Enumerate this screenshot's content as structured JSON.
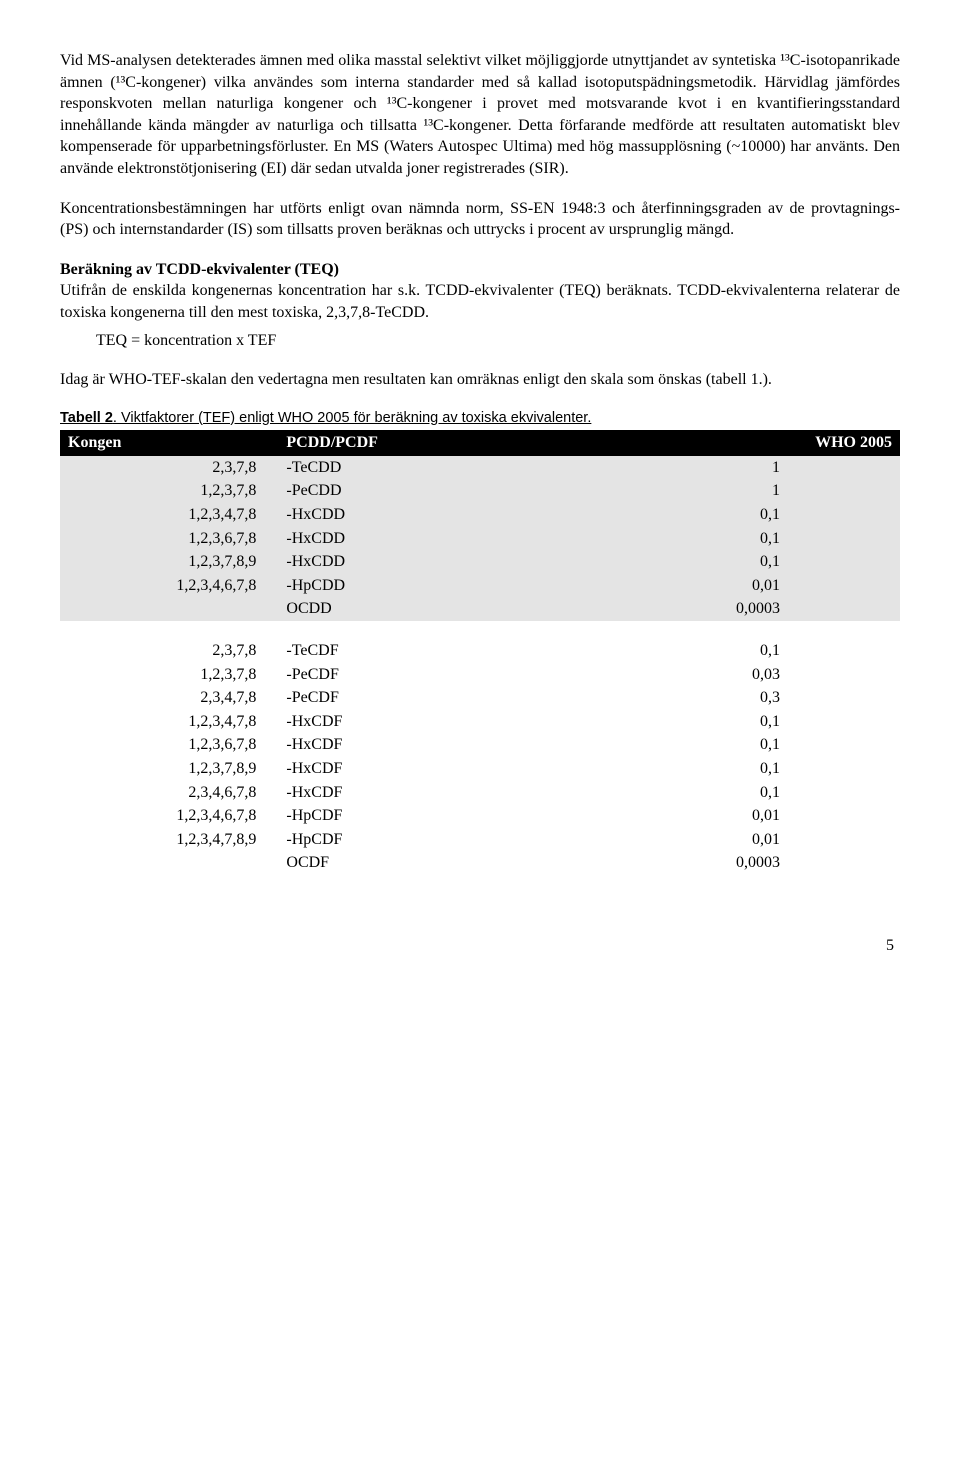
{
  "para1": "Vid MS-analysen detekterades ämnen med olika masstal selektivt vilket möjliggjorde utnyttjandet av syntetiska ¹³C-isotopanrikade ämnen (¹³C-kongener) vilka användes som interna standarder med så kallad isotoputspädningsmetodik. Härvidlag jämfördes responskvoten mellan naturliga kongener och ¹³C-kongener i provet med motsvarande kvot i en kvantifieringsstandard innehållande kända mängder av naturliga och tillsatta ¹³C-kongener. Detta förfarande medförde att resultaten automatiskt blev kompenserade för upparbetningsförluster. En MS (Waters Autospec Ultima) med hög massupplösning (~10000) har använts. Den använde elektronstötjonisering (EI) där sedan utvalda joner registrerades (SIR).",
  "para2": "Koncentrationsbestämningen har utförts enligt ovan nämnda norm, SS-EN 1948:3 och återfinningsgraden av de provtagnings- (PS) och internstandarder (IS) som tillsatts proven beräknas och uttrycks i procent av ursprunglig mängd.",
  "section_title": "Beräkning av TCDD-ekvivalenter (TEQ)",
  "para3": "Utifrån de enskilda kongenernas koncentration har s.k. TCDD-ekvivalenter (TEQ) beräknats. TCDD-ekvivalenterna relaterar de toxiska kongenerna till den mest toxiska, 2,3,7,8-TeCDD.",
  "formula": "TEQ = koncentration x TEF",
  "para4": "Idag är WHO-TEF-skalan den vedertagna men resultaten kan omräknas enligt den skala som önskas (tabell 1.).",
  "table_caption_bold": "Tabell 2",
  "table_caption_rest": ". Viktfaktorer (TEF) enligt WHO 2005 för beräkning av toxiska ekvivalenter.",
  "table": {
    "columns": [
      "Kongen",
      "PCDD/PCDF",
      "WHO 2005"
    ],
    "block1": [
      [
        "2,3,7,8",
        "-TeCDD",
        "1"
      ],
      [
        "1,2,3,7,8",
        "-PeCDD",
        "1"
      ],
      [
        "1,2,3,4,7,8",
        "-HxCDD",
        "0,1"
      ],
      [
        "1,2,3,6,7,8",
        "-HxCDD",
        "0,1"
      ],
      [
        "1,2,3,7,8,9",
        "-HxCDD",
        "0,1"
      ],
      [
        "1,2,3,4,6,7,8",
        "-HpCDD",
        "0,01"
      ],
      [
        "",
        "OCDD",
        "0,0003"
      ]
    ],
    "block2": [
      [
        "2,3,7,8",
        "-TeCDF",
        "0,1"
      ],
      [
        "1,2,3,7,8",
        "-PeCDF",
        "0,03"
      ],
      [
        "2,3,4,7,8",
        "-PeCDF",
        "0,3"
      ],
      [
        "1,2,3,4,7,8",
        "-HxCDF",
        "0,1"
      ],
      [
        "1,2,3,6,7,8",
        "-HxCDF",
        "0,1"
      ],
      [
        "1,2,3,7,8,9",
        "-HxCDF",
        "0,1"
      ],
      [
        "2,3,4,6,7,8",
        "-HxCDF",
        "0,1"
      ],
      [
        "1,2,3,4,6,7,8",
        "-HpCDF",
        "0,01"
      ],
      [
        "1,2,3,4,7,8,9",
        "-HpCDF",
        "0,01"
      ],
      [
        "",
        "OCDF",
        "0,0003"
      ]
    ]
  },
  "page_number": "5"
}
